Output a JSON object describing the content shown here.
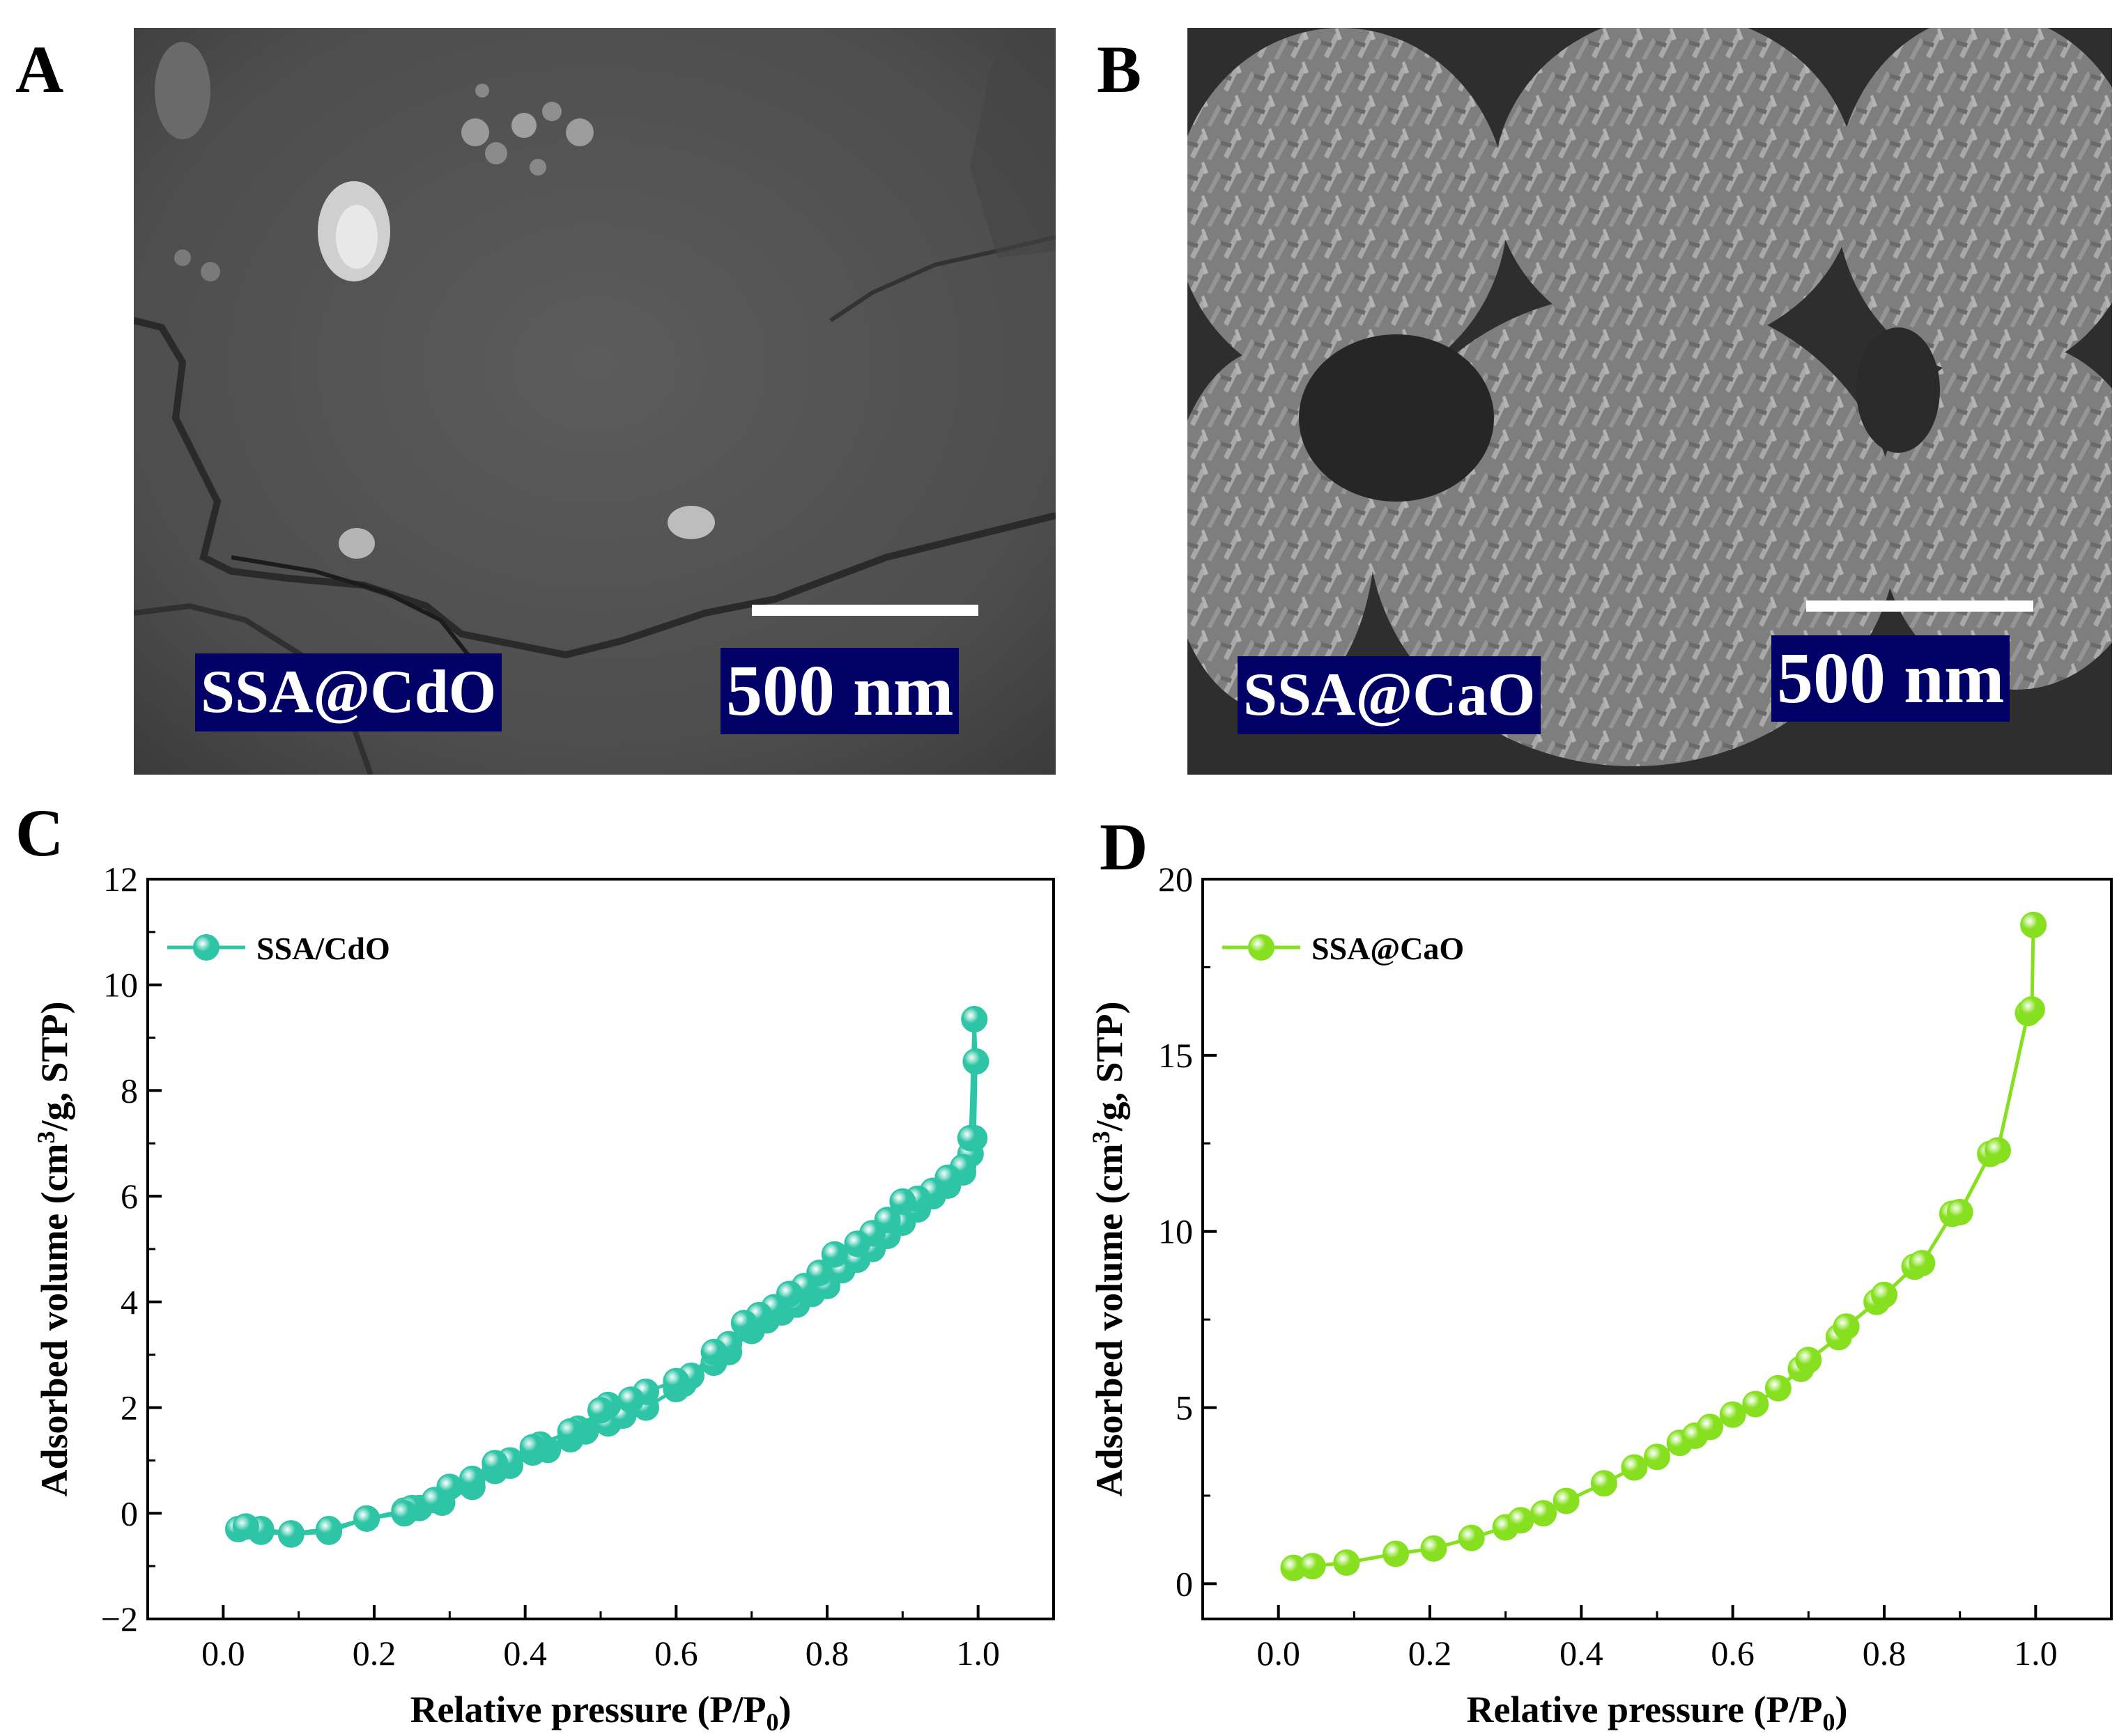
{
  "panels": {
    "a": {
      "letter": "A",
      "sample_label": "SSA@CdO",
      "scale_label": "500 nm"
    },
    "b": {
      "letter": "B",
      "sample_label": "SSA@CaO",
      "scale_label": "500 nm"
    },
    "c": {
      "letter": "C"
    },
    "d": {
      "letter": "D"
    }
  },
  "colors": {
    "teal": "#2ec4a6",
    "lime": "#86e01f",
    "sem_label_bg": "#000066"
  },
  "chart_data": [
    {
      "id": "c",
      "type": "line",
      "title": "",
      "xlabel": "Relative pressure (P/P",
      "xlabel_sub": "0",
      "xlabel_end": ")",
      "ylabel": "Adsorbed volume (cm",
      "ylabel_sup": "3",
      "ylabel_end": "/g, STP)",
      "xlim": [
        -0.1,
        1.1
      ],
      "ylim": [
        -2,
        12
      ],
      "xticks": [
        0.0,
        0.2,
        0.4,
        0.6,
        0.8,
        1.0
      ],
      "xtick_labels": [
        "0.0",
        "0.2",
        "0.4",
        "0.6",
        "0.8",
        "1.0"
      ],
      "yticks": [
        -2,
        0,
        2,
        4,
        6,
        8,
        10,
        12
      ],
      "ytick_labels": [
        "−2",
        "0",
        "2",
        "4",
        "6",
        "8",
        "10",
        "12"
      ],
      "grid": false,
      "legend_position": "top-left",
      "series": [
        {
          "name": "SSA/CdO",
          "color": "#2ec4a6",
          "x": [
            0.02,
            0.05,
            0.09,
            0.14,
            0.19,
            0.24,
            0.26,
            0.29,
            0.33,
            0.36,
            0.38,
            0.41,
            0.43,
            0.46,
            0.48,
            0.51,
            0.53,
            0.56,
            0.6,
            0.61,
            0.65,
            0.67,
            0.7,
            0.72,
            0.74,
            0.76,
            0.78,
            0.8,
            0.82,
            0.84,
            0.86,
            0.88,
            0.9,
            0.92,
            0.94,
            0.96,
            0.98,
            0.99,
            0.995,
            0.997,
            0.995,
            0.99,
            0.98,
            0.96,
            0.94,
            0.92,
            0.9,
            0.88,
            0.86,
            0.84,
            0.81,
            0.79,
            0.77,
            0.75,
            0.73,
            0.71,
            0.69,
            0.67,
            0.65,
            0.62,
            0.6,
            0.56,
            0.54,
            0.51,
            0.5,
            0.47,
            0.46,
            0.42,
            0.41,
            0.38,
            0.36,
            0.33,
            0.3,
            0.28,
            0.25,
            0.24,
            0.19,
            0.14,
            0.09,
            0.05,
            0.03
          ],
          "y": [
            -0.3,
            -0.35,
            -0.4,
            -0.35,
            -0.1,
            0.05,
            0.1,
            0.2,
            0.5,
            0.8,
            0.9,
            1.15,
            1.2,
            1.4,
            1.55,
            1.7,
            1.85,
            2.0,
            2.35,
            2.45,
            2.85,
            3.05,
            3.45,
            3.65,
            3.8,
            3.95,
            4.15,
            4.3,
            4.6,
            4.8,
            5.0,
            5.25,
            5.5,
            5.75,
            6.0,
            6.2,
            6.45,
            6.8,
            7.1,
            8.55,
            9.35,
            7.1,
            6.55,
            6.35,
            6.1,
            5.95,
            5.9,
            5.55,
            5.3,
            5.1,
            4.9,
            4.55,
            4.3,
            4.15,
            3.9,
            3.75,
            3.6,
            3.2,
            3.05,
            2.6,
            2.5,
            2.3,
            2.15,
            2.05,
            1.95,
            1.6,
            1.55,
            1.3,
            1.25,
            1.0,
            0.95,
            0.65,
            0.5,
            0.25,
            0.1,
            0.0,
            -0.1,
            -0.3,
            -0.38,
            -0.3,
            -0.25
          ]
        }
      ]
    },
    {
      "id": "d",
      "type": "line",
      "title": "",
      "xlabel": "Relative pressure (P/P",
      "xlabel_sub": "0",
      "xlabel_end": ")",
      "ylabel": "Adsorbed volume (cm",
      "ylabel_sup": "3",
      "ylabel_end": "/g, STP)",
      "xlim": [
        -0.1,
        1.1
      ],
      "ylim": [
        -1,
        20
      ],
      "xticks": [
        0.0,
        0.2,
        0.4,
        0.6,
        0.8,
        1.0
      ],
      "xtick_labels": [
        "0.0",
        "0.2",
        "0.4",
        "0.6",
        "0.8",
        "1.0"
      ],
      "yticks": [
        0,
        5,
        10,
        15,
        20
      ],
      "ytick_labels": [
        "0",
        "5",
        "10",
        "15",
        "20"
      ],
      "grid": false,
      "legend_position": "top-left",
      "series": [
        {
          "name": "SSA@CaO",
          "color": "#86e01f",
          "x": [
            0.02,
            0.045,
            0.09,
            0.155,
            0.205,
            0.255,
            0.3,
            0.32,
            0.35,
            0.38,
            0.43,
            0.47,
            0.5,
            0.53,
            0.55,
            0.57,
            0.6,
            0.63,
            0.66,
            0.69,
            0.7,
            0.74,
            0.75,
            0.79,
            0.8,
            0.84,
            0.85,
            0.89,
            0.9,
            0.94,
            0.95,
            0.99,
            0.995,
            0.997
          ],
          "y": [
            0.45,
            0.5,
            0.6,
            0.85,
            1.0,
            1.3,
            1.6,
            1.8,
            2.0,
            2.35,
            2.85,
            3.3,
            3.6,
            4.0,
            4.2,
            4.45,
            4.8,
            5.1,
            5.55,
            6.1,
            6.35,
            7.0,
            7.3,
            8.0,
            8.2,
            9.0,
            9.1,
            10.5,
            10.55,
            12.2,
            12.3,
            16.2,
            16.3,
            18.7
          ]
        }
      ]
    }
  ]
}
